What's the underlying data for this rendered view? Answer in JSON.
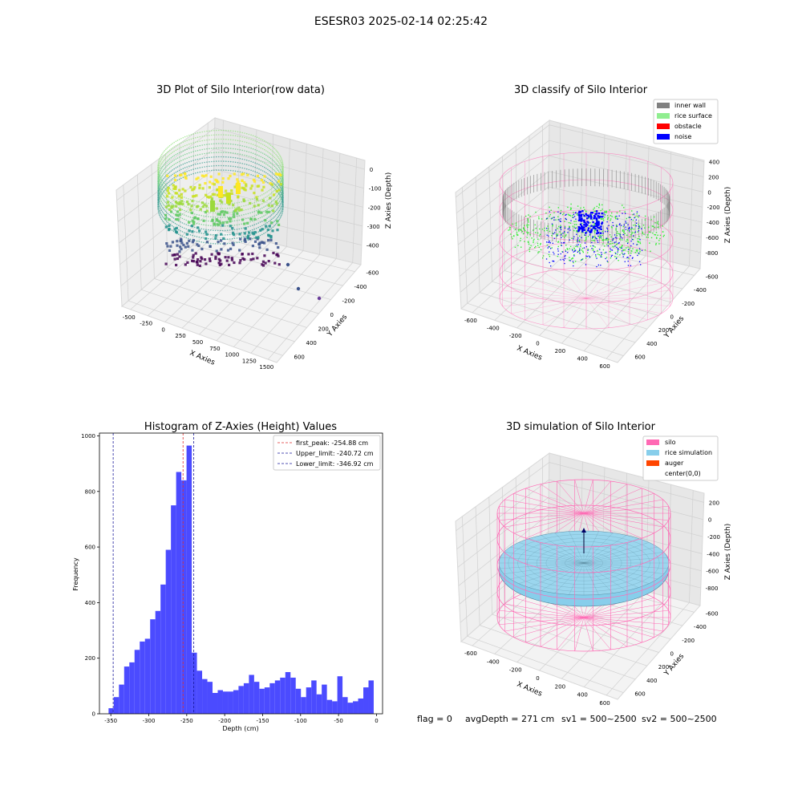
{
  "suptitle": "ESESR03 2025-02-14 02:25:42",
  "status": {
    "flag": "flag = 0",
    "avg_depth": "avgDepth = 271 cm",
    "sv1": "sv1 = 500~2500",
    "sv2": "sv2 = 500~2500"
  },
  "colors": {
    "hist_bar": "#4b4bff",
    "peak_line": "#e03030",
    "limit_line": "#1a1a9a",
    "silo": "#ff69b4",
    "rice_simulation": "#87ceeb",
    "auger": "#ff4500",
    "inner_wall": "#808080",
    "rice_surface": "#90ee90",
    "obstacle": "#ff0000",
    "noise": "#0000ff"
  },
  "chart_data": [
    {
      "type": "scatter3d",
      "title": "3D Plot of Silo Interior(row data)",
      "xlabel": "X Axies",
      "ylabel": "Y Axies",
      "zlabel": "Z Axies (Depth)",
      "x_ticks": [
        "-500",
        "-250",
        "0",
        "250",
        "500",
        "750",
        "1000",
        "1250",
        "1500"
      ],
      "y_ticks": [
        "-600",
        "-400",
        "-200",
        "0",
        "200",
        "400",
        "600"
      ],
      "z_ticks": [
        "0",
        "-100",
        "-200",
        "-300",
        "-400"
      ],
      "colormap": "viridis"
    },
    {
      "type": "scatter3d",
      "title": "3D classify of Silo Interior",
      "xlabel": "X Axies",
      "ylabel": "Y Axies",
      "zlabel": "Z Axies (Depth)",
      "x_ticks": [
        "-600",
        "-400",
        "-200",
        "0",
        "200",
        "400",
        "600"
      ],
      "y_ticks": [
        "-600",
        "-400",
        "-200",
        "0",
        "200",
        "400",
        "600"
      ],
      "z_ticks": [
        "400",
        "200",
        "0",
        "-200",
        "-400",
        "-600",
        "-800"
      ],
      "legend": [
        "inner wall",
        "rice surface",
        "obstacle",
        "noise"
      ],
      "legend_placement": "upper-right"
    },
    {
      "type": "bar",
      "title": "Histogram of Z-Axies (Height) Values",
      "xlabel": "Depth (cm)",
      "ylabel": "Frequency",
      "xlim": [
        -365,
        8
      ],
      "ylim": [
        0,
        1010
      ],
      "x_ticks": [
        -350,
        -300,
        -250,
        -200,
        -150,
        -100,
        -50,
        0
      ],
      "y_ticks": [
        0,
        200,
        400,
        600,
        800,
        1000
      ],
      "bin_start": -353,
      "bin_width": 6.85,
      "values": [
        20,
        60,
        105,
        170,
        185,
        230,
        260,
        270,
        340,
        370,
        465,
        590,
        750,
        870,
        840,
        965,
        220,
        155,
        125,
        115,
        75,
        85,
        80,
        80,
        85,
        100,
        110,
        140,
        115,
        90,
        95,
        110,
        120,
        130,
        150,
        130,
        90,
        60,
        95,
        120,
        70,
        105,
        50,
        45,
        135,
        60,
        40,
        45,
        55,
        95,
        120
      ],
      "vlines": [
        {
          "label": "first_peak: -254.88 cm",
          "value": -254.88,
          "kind": "peak"
        },
        {
          "label": "Upper_limit: -240.72 cm",
          "value": -240.72,
          "kind": "limit"
        },
        {
          "label": "Lower_limit: -346.92 cm",
          "value": -346.92,
          "kind": "limit"
        }
      ],
      "legend_placement": "upper-right"
    },
    {
      "type": "surface3d",
      "title": "3D simulation of Silo Interior",
      "xlabel": "X Axies",
      "ylabel": "Y Axies",
      "zlabel": "Z Axies (Depth)",
      "x_ticks": [
        "-600",
        "-400",
        "-200",
        "0",
        "200",
        "400",
        "600"
      ],
      "y_ticks": [
        "-600",
        "-400",
        "-200",
        "0",
        "200",
        "400",
        "600"
      ],
      "z_ticks": [
        "200",
        "0",
        "-200",
        "-400",
        "-600",
        "-800"
      ],
      "legend": [
        "silo",
        "rice simulation",
        "auger",
        "center(0,0)"
      ],
      "legend_placement": "upper-right"
    }
  ]
}
